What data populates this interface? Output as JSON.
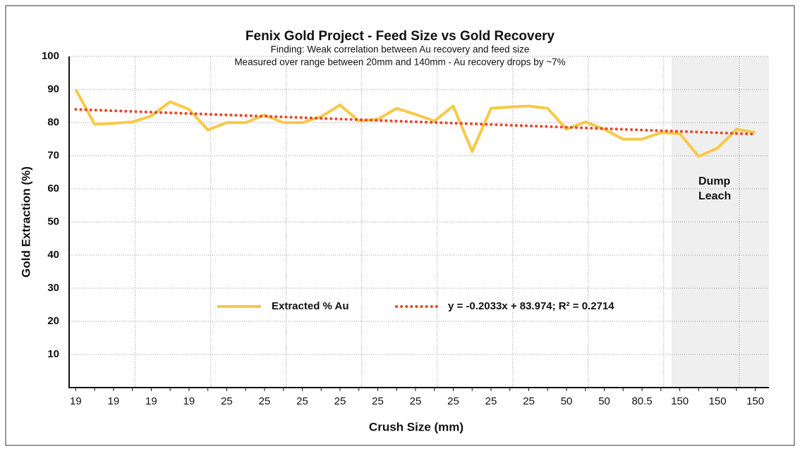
{
  "chart_data": {
    "type": "line",
    "title": "Fenix Gold Project - Feed Size vs Gold Recovery",
    "subtitle": [
      "Finding: Weak correlation between Au recovery and feed size",
      "Measured over range between 20mm and 140mm - Au recovery drops by ~7%"
    ],
    "x_label": "Crush Size (mm)",
    "y_label": "Gold Extraction (%)",
    "annotation": "Dump Leach",
    "categories": [
      "19",
      null,
      "19",
      null,
      "19",
      null,
      "19",
      null,
      "25",
      null,
      "25",
      null,
      "25",
      null,
      "25",
      null,
      "25",
      null,
      "25",
      null,
      "25",
      null,
      "25",
      null,
      "25",
      null,
      "50",
      null,
      "50",
      null,
      "80.5",
      null,
      "150",
      null,
      "150",
      null,
      "150"
    ],
    "series": [
      {
        "name": "Extracted % Au",
        "color": "#f9c846",
        "values": [
          90,
          79.5,
          79.8,
          80.2,
          82,
          86.3,
          84,
          77.8,
          80,
          80,
          82.3,
          80,
          80,
          81.8,
          85.3,
          80.5,
          81,
          84.3,
          82.5,
          80.5,
          85,
          71.3,
          84.3,
          84.7,
          85,
          84.3,
          78,
          80.2,
          78,
          75,
          75,
          77,
          76.7,
          69.8,
          72.3,
          78,
          77
        ]
      }
    ],
    "trendline": {
      "name": "y = -0.2033x + 83.974; R² = 0.2714",
      "color": "#e8472a"
    },
    "ylim": [
      0,
      100
    ],
    "yticks": [
      10,
      20,
      30,
      40,
      50,
      60,
      70,
      80,
      90,
      100
    ],
    "grid": true
  }
}
